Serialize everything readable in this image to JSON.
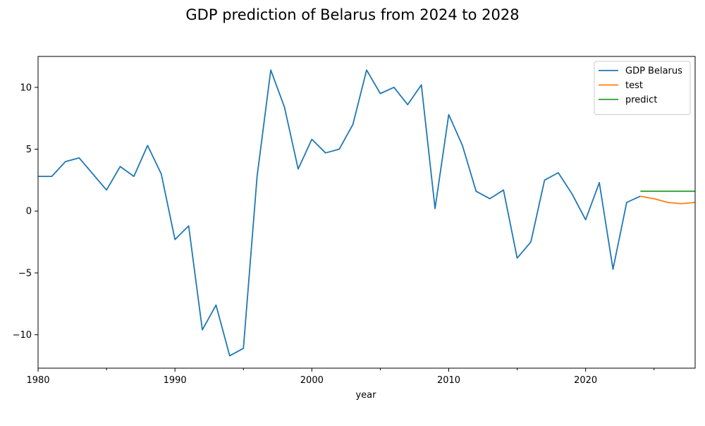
{
  "chart_data": {
    "type": "line",
    "title": "GDP prediction of Belarus from 2024 to 2028",
    "xlabel": "year",
    "ylabel": "",
    "xlim": [
      1980,
      2028
    ],
    "ylim": [
      -12.7,
      12.5
    ],
    "x_major_ticks": [
      1980,
      1990,
      2000,
      2010,
      2020
    ],
    "x_minor_ticks": [
      1985,
      1995,
      2005,
      2015,
      2025
    ],
    "y_ticks": [
      -10,
      -5,
      0,
      5,
      10
    ],
    "grid": false,
    "legend_position": "top-right",
    "series": [
      {
        "name": "GDP Belarus",
        "color": "#1f77b4",
        "x": [
          1980,
          1981,
          1982,
          1983,
          1984,
          1985,
          1986,
          1987,
          1988,
          1989,
          1990,
          1991,
          1992,
          1993,
          1994,
          1995,
          1996,
          1997,
          1998,
          1999,
          2000,
          2001,
          2002,
          2003,
          2004,
          2005,
          2006,
          2007,
          2008,
          2009,
          2010,
          2011,
          2012,
          2013,
          2014,
          2015,
          2016,
          2017,
          2018,
          2019,
          2020,
          2021,
          2022,
          2023,
          2024
        ],
        "values": [
          2.8,
          2.8,
          4.0,
          4.3,
          3.0,
          1.7,
          3.6,
          2.8,
          5.3,
          3.0,
          -2.3,
          -1.2,
          -9.6,
          -7.6,
          -11.7,
          -11.1,
          2.8,
          11.4,
          8.4,
          3.4,
          5.8,
          4.7,
          5.0,
          7.0,
          11.4,
          9.5,
          10.0,
          8.6,
          10.2,
          0.2,
          7.8,
          5.3,
          1.6,
          1.0,
          1.7,
          -3.8,
          -2.5,
          2.5,
          3.1,
          1.4,
          -0.7,
          2.3,
          -4.7,
          0.7,
          1.2
        ]
      },
      {
        "name": "test",
        "color": "#ff7f0e",
        "x": [
          2024,
          2025,
          2026,
          2027,
          2028
        ],
        "values": [
          1.2,
          1.0,
          0.7,
          0.6,
          0.7
        ]
      },
      {
        "name": "predict",
        "color": "#2ca02c",
        "x": [
          2024,
          2025,
          2026,
          2027,
          2028
        ],
        "values": [
          1.6,
          1.6,
          1.6,
          1.6,
          1.6
        ]
      }
    ]
  }
}
